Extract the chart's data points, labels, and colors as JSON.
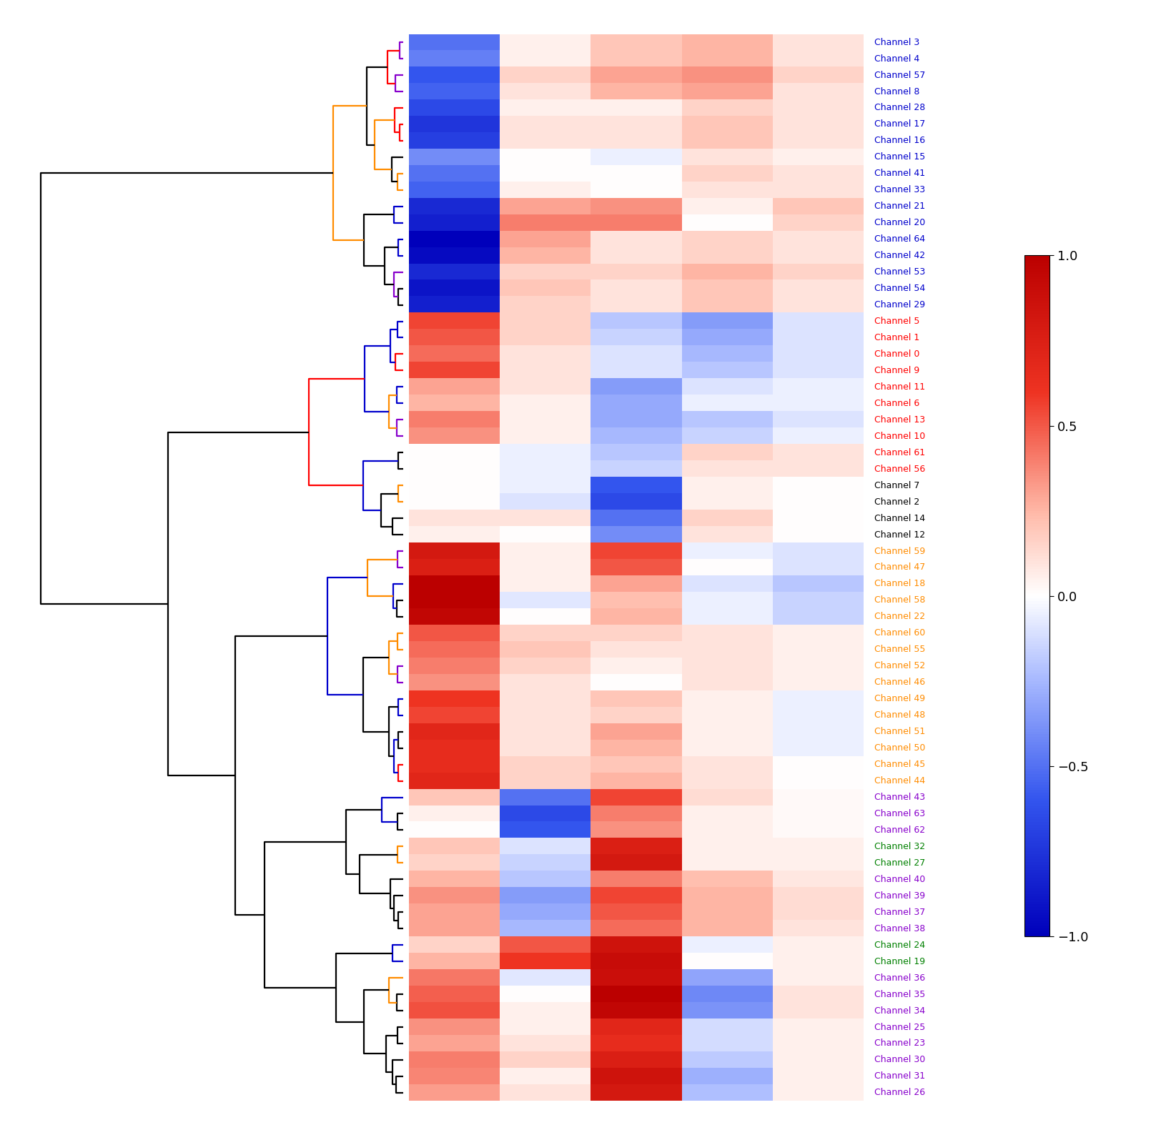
{
  "row_order": [
    "Channel 39",
    "Channel 37",
    "Channel 38",
    "Channel 40",
    "Channel 43",
    "Channel 63",
    "Channel 62",
    "Channel 36",
    "Channel 35",
    "Channel 34",
    "Channel 31",
    "Channel 26",
    "Channel 30",
    "Channel 25",
    "Channel 23",
    "Channel 58",
    "Channel 22",
    "Channel 18",
    "Channel 59",
    "Channel 47",
    "Channel 51",
    "Channel 50",
    "Channel 49",
    "Channel 48",
    "Channel 45",
    "Channel 44",
    "Channel 60",
    "Channel 55",
    "Channel 52",
    "Channel 46",
    "Channel 32",
    "Channel 27",
    "Channel 24",
    "Channel 19",
    "Channel 14",
    "Channel 12",
    "Channel 7",
    "Channel 2",
    "Channel 61",
    "Channel 56",
    "Channel 5",
    "Channel 1",
    "Channel 0",
    "Channel 13",
    "Channel 10",
    "Channel 9",
    "Channel 11",
    "Channel 6",
    "Channel 64",
    "Channel 42",
    "Channel 54",
    "Channel 29",
    "Channel 53",
    "Channel 17",
    "Channel 16",
    "Channel 28",
    "Channel 57",
    "Channel 8",
    "Channel 3",
    "Channel 4",
    "Channel 15",
    "Channel 41",
    "Channel 33",
    "Channel 21",
    "Channel 20"
  ],
  "cluster_colors": {
    "purple": [
      "Channel 39",
      "Channel 37",
      "Channel 38",
      "Channel 40",
      "Channel 43",
      "Channel 63",
      "Channel 62",
      "Channel 36",
      "Channel 35",
      "Channel 34",
      "Channel 31",
      "Channel 26",
      "Channel 30",
      "Channel 25",
      "Channel 23"
    ],
    "orange": [
      "Channel 58",
      "Channel 22",
      "Channel 18",
      "Channel 59",
      "Channel 47",
      "Channel 51",
      "Channel 50",
      "Channel 49",
      "Channel 48",
      "Channel 45",
      "Channel 44",
      "Channel 60",
      "Channel 55",
      "Channel 52",
      "Channel 46"
    ],
    "green": [
      "Channel 32",
      "Channel 27",
      "Channel 24",
      "Channel 19"
    ],
    "black": [
      "Channel 14",
      "Channel 12",
      "Channel 7",
      "Channel 2"
    ],
    "red": [
      "Channel 61",
      "Channel 56",
      "Channel 5",
      "Channel 1",
      "Channel 0",
      "Channel 13",
      "Channel 10",
      "Channel 9",
      "Channel 11",
      "Channel 6"
    ],
    "blue": [
      "Channel 64",
      "Channel 42",
      "Channel 54",
      "Channel 29",
      "Channel 53",
      "Channel 17",
      "Channel 16",
      "Channel 28",
      "Channel 57",
      "Channel 8",
      "Channel 3",
      "Channel 4",
      "Channel 15",
      "Channel 41",
      "Channel 33",
      "Channel 21",
      "Channel 20"
    ]
  },
  "cluster_hex": {
    "purple": "#8800CC",
    "orange": "#FF8C00",
    "green": "#008000",
    "black": "#000000",
    "red": "#FF0000",
    "blue": "#0000CC",
    "mixed": "#000000"
  },
  "heatmap": {
    "Channel 39": [
      0.35,
      -0.35,
      0.55,
      0.25,
      0.12
    ],
    "Channel 37": [
      0.3,
      -0.3,
      0.5,
      0.25,
      0.12
    ],
    "Channel 38": [
      0.3,
      -0.25,
      0.45,
      0.25,
      0.1
    ],
    "Channel 40": [
      0.25,
      -0.2,
      0.4,
      0.22,
      0.08
    ],
    "Channel 43": [
      0.2,
      -0.5,
      0.55,
      0.12,
      0.02
    ],
    "Channel 63": [
      0.05,
      -0.65,
      0.4,
      0.05,
      0.02
    ],
    "Channel 62": [
      0.0,
      -0.6,
      0.35,
      0.05,
      0.02
    ],
    "Channel 36": [
      0.42,
      -0.08,
      0.88,
      -0.32,
      0.05
    ],
    "Channel 35": [
      0.48,
      0.0,
      1.0,
      -0.42,
      0.1
    ],
    "Channel 34": [
      0.52,
      0.05,
      0.95,
      -0.38,
      0.1
    ],
    "Channel 31": [
      0.38,
      0.05,
      0.85,
      -0.28,
      0.05
    ],
    "Channel 26": [
      0.32,
      0.1,
      0.8,
      -0.22,
      0.05
    ],
    "Channel 30": [
      0.4,
      0.15,
      0.75,
      -0.18,
      0.05
    ],
    "Channel 25": [
      0.35,
      0.05,
      0.7,
      -0.12,
      0.05
    ],
    "Channel 23": [
      0.3,
      0.1,
      0.65,
      -0.12,
      0.05
    ],
    "Channel 58": [
      1.0,
      -0.08,
      0.22,
      -0.05,
      -0.15
    ],
    "Channel 22": [
      0.95,
      0.0,
      0.25,
      -0.05,
      -0.15
    ],
    "Channel 18": [
      1.0,
      0.05,
      0.3,
      -0.1,
      -0.2
    ],
    "Channel 59": [
      0.8,
      0.05,
      0.55,
      -0.05,
      -0.1
    ],
    "Channel 47": [
      0.75,
      0.05,
      0.5,
      0.0,
      -0.1
    ],
    "Channel 51": [
      0.7,
      0.1,
      0.3,
      0.05,
      -0.05
    ],
    "Channel 50": [
      0.65,
      0.1,
      0.25,
      0.05,
      -0.05
    ],
    "Channel 49": [
      0.6,
      0.1,
      0.2,
      0.05,
      -0.05
    ],
    "Channel 48": [
      0.55,
      0.1,
      0.15,
      0.05,
      -0.05
    ],
    "Channel 45": [
      0.65,
      0.15,
      0.2,
      0.1,
      0.0
    ],
    "Channel 44": [
      0.7,
      0.15,
      0.25,
      0.1,
      0.0
    ],
    "Channel 60": [
      0.5,
      0.15,
      0.15,
      0.1,
      0.05
    ],
    "Channel 55": [
      0.45,
      0.2,
      0.1,
      0.1,
      0.05
    ],
    "Channel 52": [
      0.4,
      0.15,
      0.05,
      0.1,
      0.05
    ],
    "Channel 46": [
      0.35,
      0.1,
      0.0,
      0.1,
      0.05
    ],
    "Channel 32": [
      0.2,
      -0.1,
      0.75,
      0.05,
      0.05
    ],
    "Channel 27": [
      0.15,
      -0.15,
      0.8,
      0.05,
      0.05
    ],
    "Channel 24": [
      0.15,
      0.5,
      0.85,
      -0.05,
      0.05
    ],
    "Channel 19": [
      0.25,
      0.6,
      0.9,
      0.0,
      0.05
    ],
    "Channel 14": [
      0.1,
      0.1,
      -0.5,
      0.15,
      0.0
    ],
    "Channel 12": [
      0.05,
      0.0,
      -0.4,
      0.1,
      0.0
    ],
    "Channel 7": [
      0.0,
      -0.05,
      -0.6,
      0.05,
      0.0
    ],
    "Channel 2": [
      0.0,
      -0.1,
      -0.65,
      0.05,
      0.0
    ],
    "Channel 61": [
      0.0,
      -0.05,
      -0.2,
      0.15,
      0.1
    ],
    "Channel 56": [
      0.0,
      -0.05,
      -0.15,
      0.1,
      0.1
    ],
    "Channel 5": [
      0.55,
      0.15,
      -0.2,
      -0.35,
      -0.1
    ],
    "Channel 1": [
      0.5,
      0.15,
      -0.15,
      -0.3,
      -0.1
    ],
    "Channel 0": [
      0.45,
      0.1,
      -0.1,
      -0.25,
      -0.1
    ],
    "Channel 13": [
      0.4,
      0.05,
      -0.3,
      -0.2,
      -0.1
    ],
    "Channel 10": [
      0.35,
      0.05,
      -0.25,
      -0.15,
      -0.05
    ],
    "Channel 9": [
      0.55,
      0.1,
      -0.1,
      -0.2,
      -0.1
    ],
    "Channel 11": [
      0.3,
      0.1,
      -0.35,
      -0.1,
      -0.05
    ],
    "Channel 6": [
      0.25,
      0.05,
      -0.3,
      -0.05,
      -0.05
    ],
    "Channel 64": [
      -1.0,
      0.3,
      0.1,
      0.15,
      0.1
    ],
    "Channel 42": [
      -0.95,
      0.25,
      0.1,
      0.15,
      0.1
    ],
    "Channel 54": [
      -0.9,
      0.2,
      0.1,
      0.2,
      0.1
    ],
    "Channel 29": [
      -0.85,
      0.15,
      0.1,
      0.2,
      0.1
    ],
    "Channel 53": [
      -0.8,
      0.15,
      0.15,
      0.25,
      0.15
    ],
    "Channel 17": [
      -0.75,
      0.1,
      0.1,
      0.2,
      0.1
    ],
    "Channel 16": [
      -0.7,
      0.1,
      0.1,
      0.2,
      0.1
    ],
    "Channel 28": [
      -0.65,
      0.05,
      0.05,
      0.15,
      0.1
    ],
    "Channel 57": [
      -0.6,
      0.15,
      0.3,
      0.35,
      0.15
    ],
    "Channel 8": [
      -0.55,
      0.1,
      0.25,
      0.3,
      0.1
    ],
    "Channel 3": [
      -0.5,
      0.05,
      0.2,
      0.25,
      0.1
    ],
    "Channel 4": [
      -0.45,
      0.05,
      0.2,
      0.25,
      0.1
    ],
    "Channel 15": [
      -0.4,
      0.0,
      -0.05,
      0.1,
      0.05
    ],
    "Channel 41": [
      -0.5,
      0.0,
      0.0,
      0.15,
      0.1
    ],
    "Channel 33": [
      -0.55,
      0.05,
      0.0,
      0.1,
      0.1
    ],
    "Channel 21": [
      -0.8,
      0.3,
      0.35,
      0.05,
      0.2
    ],
    "Channel 20": [
      -0.85,
      0.4,
      0.4,
      0.0,
      0.15
    ]
  },
  "colorbar_ticks": [
    -1.0,
    -0.5,
    0.0,
    0.5,
    1.0
  ],
  "label_fontsize": 9.0,
  "lw": 1.6
}
